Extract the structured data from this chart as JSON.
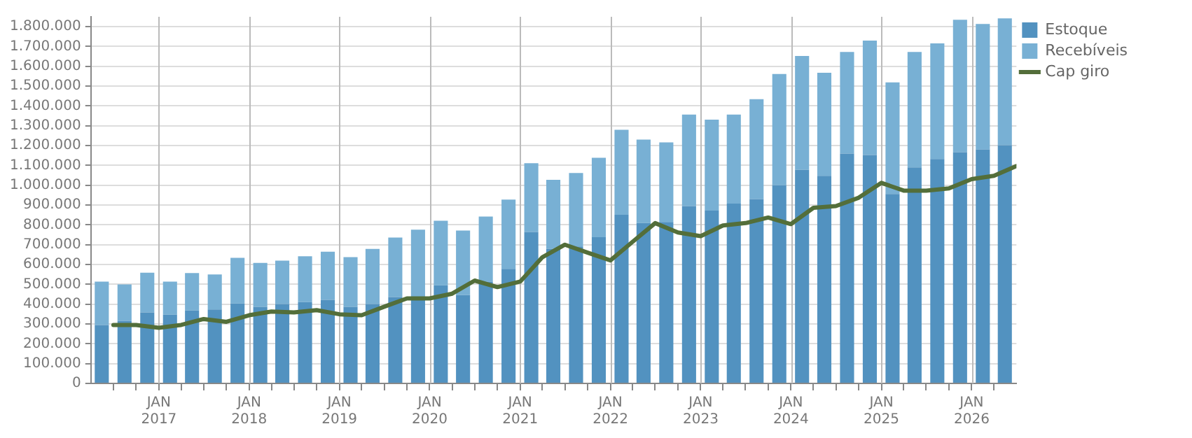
{
  "chart_data": {
    "type": "bar",
    "stacked": true,
    "legend": "top right",
    "grid": true,
    "x": [
      "2016-05-15",
      "2016-08-15",
      "2016-11-15",
      "2017-02-15",
      "2017-05-15",
      "2017-08-15",
      "2017-11-15",
      "2018-02-15",
      "2018-05-15",
      "2018-08-15",
      "2018-11-15",
      "2019-02-15",
      "2019-05-15",
      "2019-08-15",
      "2019-11-15",
      "2020-02-15",
      "2020-05-15",
      "2020-08-15",
      "2020-11-15",
      "2021-02-15",
      "2021-05-15",
      "2021-08-15",
      "2021-11-15",
      "2022-02-15",
      "2022-05-15",
      "2022-08-15",
      "2022-11-15",
      "2023-02-15",
      "2023-05-15",
      "2023-08-15",
      "2023-11-15",
      "2024-02-15",
      "2024-05-15",
      "2024-08-15",
      "2024-11-15",
      "2025-02-15",
      "2025-05-15",
      "2025-08-15",
      "2025-11-15",
      "2026-02-15",
      "2026-05-15"
    ],
    "xlim": [
      "2016-04-01",
      "2026-07-01"
    ],
    "xticks": [
      {
        "value": "2016-07-01",
        "label": null
      },
      {
        "value": "2016-10-01",
        "label": null
      },
      {
        "value": "2017-01-01",
        "label": "JAN\n2017"
      },
      {
        "value": "2017-04-01",
        "label": null
      },
      {
        "value": "2017-07-01",
        "label": null
      },
      {
        "value": "2017-10-01",
        "label": null
      },
      {
        "value": "2018-01-01",
        "label": "JAN\n2018"
      },
      {
        "value": "2018-04-01",
        "label": null
      },
      {
        "value": "2018-07-01",
        "label": null
      },
      {
        "value": "2018-10-01",
        "label": null
      },
      {
        "value": "2019-01-01",
        "label": "JAN\n2019"
      },
      {
        "value": "2019-04-01",
        "label": null
      },
      {
        "value": "2019-07-01",
        "label": null
      },
      {
        "value": "2019-10-01",
        "label": null
      },
      {
        "value": "2020-01-01",
        "label": "JAN\n2020"
      },
      {
        "value": "2020-04-01",
        "label": null
      },
      {
        "value": "2020-07-01",
        "label": null
      },
      {
        "value": "2020-10-01",
        "label": null
      },
      {
        "value": "2021-01-01",
        "label": "JAN\n2021"
      },
      {
        "value": "2021-04-01",
        "label": null
      },
      {
        "value": "2021-07-01",
        "label": null
      },
      {
        "value": "2021-10-01",
        "label": null
      },
      {
        "value": "2022-01-01",
        "label": "JAN\n2022"
      },
      {
        "value": "2022-04-01",
        "label": null
      },
      {
        "value": "2022-07-01",
        "label": null
      },
      {
        "value": "2022-10-01",
        "label": null
      },
      {
        "value": "2023-01-01",
        "label": "JAN\n2023"
      },
      {
        "value": "2023-04-01",
        "label": null
      },
      {
        "value": "2023-07-01",
        "label": null
      },
      {
        "value": "2023-10-01",
        "label": null
      },
      {
        "value": "2024-01-01",
        "label": "JAN\n2024"
      },
      {
        "value": "2024-04-01",
        "label": null
      },
      {
        "value": "2024-07-01",
        "label": null
      },
      {
        "value": "2024-10-01",
        "label": null
      },
      {
        "value": "2025-01-01",
        "label": "JAN\n2025"
      },
      {
        "value": "2025-04-01",
        "label": null
      },
      {
        "value": "2025-07-01",
        "label": null
      },
      {
        "value": "2025-10-01",
        "label": null
      },
      {
        "value": "2026-01-01",
        "label": "JAN\n2026"
      },
      {
        "value": "2026-04-01",
        "label": null
      }
    ],
    "ylim": [
      0,
      1850000
    ],
    "yticks": [
      {
        "value": 0,
        "label": "0"
      },
      {
        "value": 100000,
        "label": "100.000"
      },
      {
        "value": 200000,
        "label": "200.000"
      },
      {
        "value": 300000,
        "label": "300.000"
      },
      {
        "value": 400000,
        "label": "400.000"
      },
      {
        "value": 500000,
        "label": "500.000"
      },
      {
        "value": 600000,
        "label": "600.000"
      },
      {
        "value": 700000,
        "label": "700.000"
      },
      {
        "value": 800000,
        "label": "800.000"
      },
      {
        "value": 900000,
        "label": "900.000"
      },
      {
        "value": 1000000,
        "label": "1.000.000"
      },
      {
        "value": 1100000,
        "label": "1.100.000"
      },
      {
        "value": 1200000,
        "label": "1.200.000"
      },
      {
        "value": 1300000,
        "label": "1.300.000"
      },
      {
        "value": 1400000,
        "label": "1.400.000"
      },
      {
        "value": 1500000,
        "label": "1.500.000"
      },
      {
        "value": 1600000,
        "label": "1.600.000"
      },
      {
        "value": 1700000,
        "label": "1.700.000"
      },
      {
        "value": 1800000,
        "label": "1.800.000"
      }
    ],
    "series": [
      {
        "name": "Estoque",
        "color": "#5292c0",
        "values": [
          295000,
          316000,
          358000,
          347000,
          368000,
          373000,
          403000,
          387000,
          401000,
          410000,
          422000,
          387000,
          401000,
          436000,
          432000,
          495000,
          446000,
          514000,
          578000,
          764000,
          680000,
          691000,
          738000,
          851000,
          809000,
          815000,
          895000,
          872000,
          907000,
          930000,
          1000000,
          1078000,
          1048000,
          1160000,
          1153000,
          956000,
          1090000,
          1132000,
          1167000,
          1181000,
          1202000
        ]
      },
      {
        "name": "Recebíveis",
        "color": "#78b0d4",
        "values": [
          219000,
          184000,
          201000,
          167000,
          189000,
          177000,
          231000,
          221000,
          219000,
          232000,
          243000,
          250000,
          278000,
          300000,
          344000,
          326000,
          325000,
          328000,
          350000,
          347000,
          347000,
          371000,
          401000,
          429000,
          421000,
          401000,
          462000,
          459000,
          450000,
          504000,
          561000,
          574000,
          520000,
          513000,
          577000,
          563000,
          583000,
          584000,
          668000,
          633000,
          640000
        ]
      },
      {
        "name": "Cap giro",
        "type": "line",
        "color": "#536e3a",
        "line_style": "solid",
        "x": [
          "2016-07",
          "2016-10",
          "2017-01",
          "2017-04",
          "2017-07",
          "2017-10",
          "2018-01",
          "2018-04",
          "2018-07",
          "2018-10",
          "2019-01",
          "2019-04",
          "2019-07",
          "2019-10",
          "2020-01",
          "2020-04",
          "2020-07",
          "2020-10",
          "2021-01",
          "2021-04",
          "2021-07",
          "2021-10",
          "2022-01",
          "2022-04",
          "2022-07",
          "2022-10",
          "2023-01",
          "2023-04",
          "2023-07",
          "2023-10",
          "2024-01",
          "2024-04",
          "2024-07",
          "2024-10",
          "2025-01",
          "2025-04",
          "2025-07",
          "2025-10",
          "2026-01",
          "2026-04",
          "2026-07"
        ],
        "values": [
          295000,
          295000,
          281000,
          295000,
          325000,
          311000,
          344000,
          363000,
          358000,
          370000,
          349000,
          344000,
          387000,
          429000,
          429000,
          453000,
          519000,
          486000,
          514000,
          637000,
          700000,
          660000,
          621000,
          715000,
          809000,
          762000,
          743000,
          797000,
          809000,
          837000,
          804000,
          886000,
          895000,
          937000,
          1012000,
          973000,
          973000,
          984000,
          1031000,
          1048000,
          1097000
        ]
      }
    ]
  }
}
